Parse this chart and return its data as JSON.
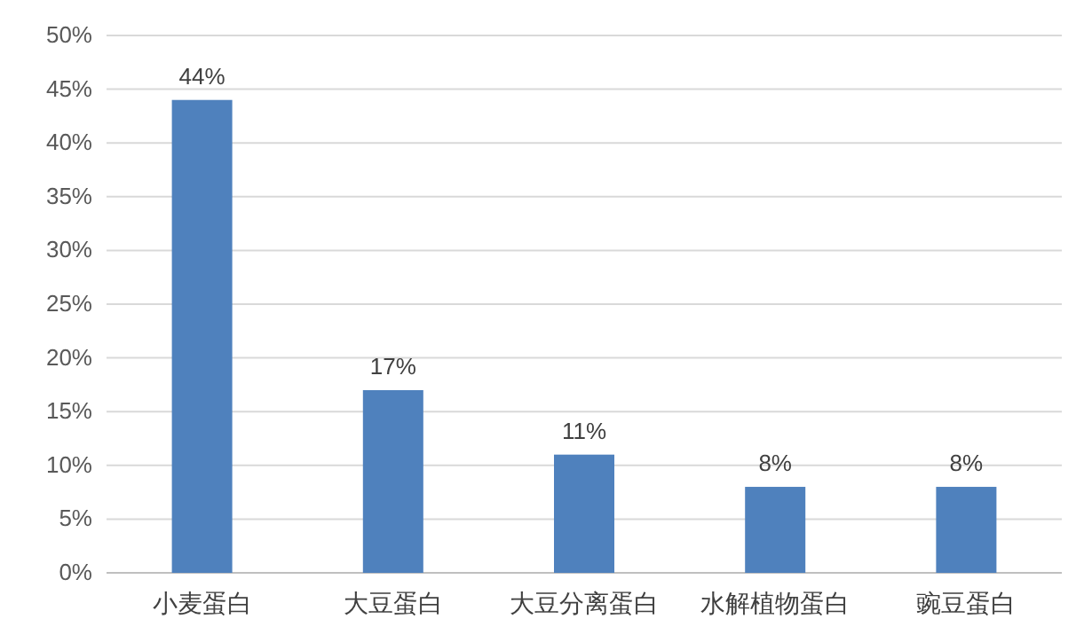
{
  "chart_data": {
    "type": "bar",
    "categories": [
      "小麦蛋白",
      "大豆蛋白",
      "大豆分离蛋白",
      "水解植物蛋白",
      "豌豆蛋白"
    ],
    "values": [
      44,
      17,
      11,
      8,
      8
    ],
    "value_labels": [
      "44%",
      "17%",
      "11%",
      "8%",
      "8%"
    ],
    "color": "#4f81bd",
    "ylim": [
      0,
      50
    ],
    "yticks": [
      {
        "value": 0,
        "label": "0%"
      },
      {
        "value": 5,
        "label": "5%"
      },
      {
        "value": 10,
        "label": "10%"
      },
      {
        "value": 15,
        "label": "15%"
      },
      {
        "value": 20,
        "label": "20%"
      },
      {
        "value": 25,
        "label": "25%"
      },
      {
        "value": 30,
        "label": "30%"
      },
      {
        "value": 35,
        "label": "35%"
      },
      {
        "value": 40,
        "label": "40%"
      },
      {
        "value": 45,
        "label": "45%"
      },
      {
        "value": 50,
        "label": "50%"
      }
    ],
    "grid": "y"
  }
}
